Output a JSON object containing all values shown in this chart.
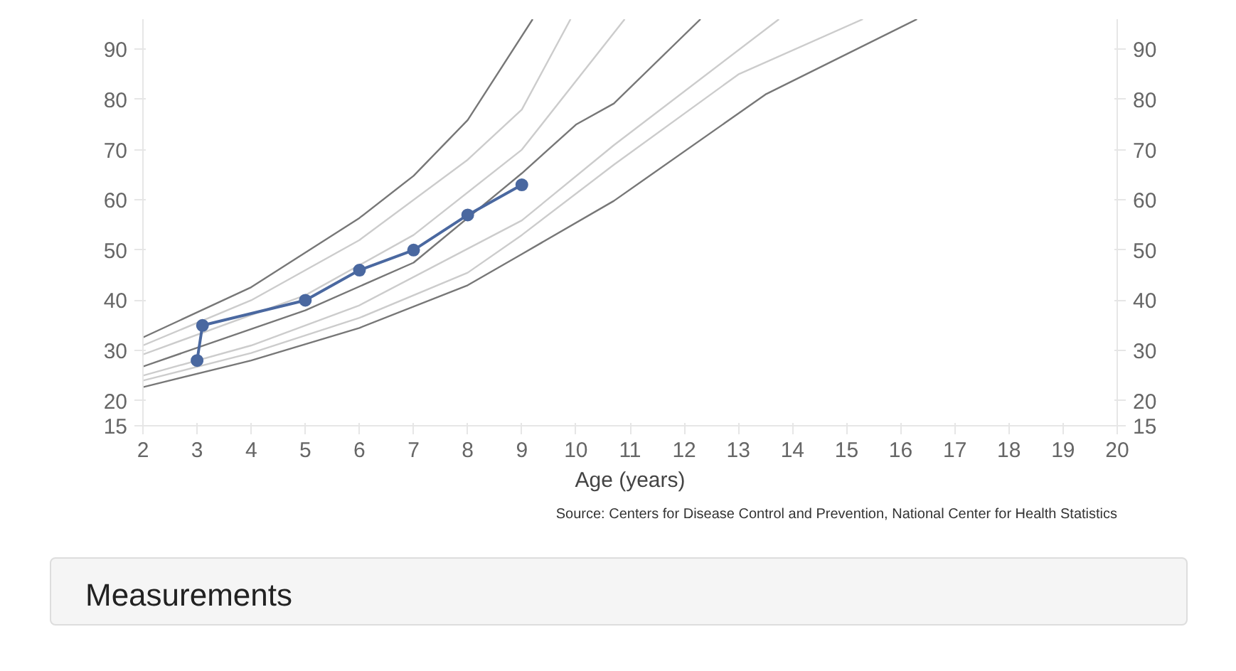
{
  "chart_data": {
    "type": "line",
    "xlabel": "Age (years)",
    "xlim": [
      2,
      20
    ],
    "xticks": [
      2,
      3,
      4,
      5,
      6,
      7,
      8,
      9,
      10,
      11,
      12,
      13,
      14,
      15,
      16,
      17,
      18,
      19,
      20
    ],
    "ylim": [
      15,
      96
    ],
    "yticks": [
      15,
      20,
      30,
      40,
      50,
      60,
      70,
      80,
      90
    ],
    "y2lim": [
      15,
      96
    ],
    "y2ticks": [
      15,
      20,
      30,
      40,
      50,
      60,
      70,
      80,
      90
    ],
    "grid": false,
    "line_style": "solid",
    "series": [
      {
        "color": "#777777",
        "marker": "none",
        "x": [
          2,
          4,
          6,
          7,
          8,
          9.2
        ],
        "values": [
          32.6,
          42.6,
          56.4,
          64.8,
          75.9,
          96
        ]
      },
      {
        "color": "#cccccc",
        "marker": "none",
        "x": [
          2,
          4,
          6,
          8,
          9,
          9.9
        ],
        "values": [
          31,
          40,
          52,
          68,
          78,
          96
        ]
      },
      {
        "color": "#cccccc",
        "marker": "none",
        "x": [
          2,
          5,
          7,
          9,
          10.9
        ],
        "values": [
          29.2,
          41,
          53,
          70,
          96
        ]
      },
      {
        "color": "#777777",
        "marker": "none",
        "x": [
          2,
          5,
          7,
          9,
          10,
          10.7,
          12.3
        ],
        "values": [
          26.8,
          38,
          47.5,
          65.3,
          75,
          79.2,
          96
        ]
      },
      {
        "color": "#cccccc",
        "marker": "none",
        "x": [
          2,
          4,
          6,
          9,
          10.7,
          13.75
        ],
        "values": [
          25,
          31,
          39,
          55.9,
          70.9,
          96
        ]
      },
      {
        "color": "#cccccc",
        "marker": "none",
        "x": [
          2,
          4,
          6,
          8,
          9,
          10.7,
          13,
          15.3
        ],
        "values": [
          24,
          29.5,
          36.5,
          45.5,
          53,
          67,
          85,
          96
        ]
      },
      {
        "color": "#777777",
        "marker": "none",
        "x": [
          2,
          4,
          6,
          8,
          9,
          10.7,
          13.5,
          16.3
        ],
        "values": [
          22.7,
          28,
          34.5,
          43,
          49.2,
          59.8,
          81,
          96
        ]
      },
      {
        "color": "#4a68a0",
        "marker": "circle",
        "x": [
          3,
          3.1,
          5,
          6,
          7,
          8,
          9
        ],
        "values": [
          28,
          35,
          40,
          46,
          50,
          57,
          63
        ]
      }
    ],
    "annotations": [
      "Source: Centers for Disease Control and Prevention, National Center for Health Statistics",
      "Measurements"
    ]
  }
}
